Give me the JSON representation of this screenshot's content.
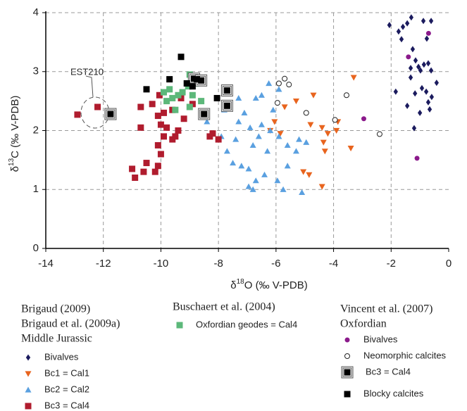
{
  "chart_data": {
    "type": "scatter",
    "x_label": {
      "symbol": "δ",
      "sup": "18",
      "rest": "O (‰ V-PDB)"
    },
    "y_label": {
      "symbol": "δ",
      "sup": "13",
      "rest": "C (‰ V-PDB)"
    },
    "annotation": "EST210",
    "xlim": [
      -14,
      0
    ],
    "ylim": [
      0,
      4
    ],
    "xticks": [
      -14,
      -12,
      -10,
      -8,
      -6,
      -4,
      -2,
      0
    ],
    "yticks": [
      0,
      1,
      2,
      3,
      4
    ],
    "grid": true,
    "legend_headers": [
      [
        "Brigaud (2009)",
        "Brigaud et al. (2009a)",
        "Middle Jurassic"
      ],
      [
        "Buschaert et al. (2004)"
      ],
      [
        "Vincent et al. (2007)",
        "Oxfordian"
      ]
    ],
    "series": [
      {
        "name": "Bivalves",
        "color": "#1b1b5e",
        "marker": "diamond",
        "x": [
          -2.06,
          -1.59,
          -1.44,
          -1.3,
          -1.74,
          -1.64,
          -1.25,
          -0.88,
          -0.61,
          -0.76,
          -1.15,
          -1.05,
          -0.98,
          -0.86,
          -0.71,
          -0.61,
          -1.32,
          -0.93,
          -0.78,
          -0.42,
          -1.17,
          -0.59,
          -1.84,
          -1.44,
          -1.0,
          -0.71,
          -0.66,
          -1.2,
          -1.32
        ],
        "y": [
          3.79,
          3.76,
          3.82,
          3.92,
          3.68,
          3.55,
          3.38,
          3.86,
          3.86,
          3.56,
          3.19,
          3.08,
          3.02,
          3.12,
          3.14,
          3.02,
          2.9,
          2.72,
          2.66,
          2.81,
          2.63,
          2.57,
          2.66,
          2.42,
          2.3,
          2.48,
          2.36,
          2.04,
          3.06
        ]
      },
      {
        "name": "Bc1 = Cal1",
        "color": "#e8641e",
        "marker": "tri-down",
        "x": [
          -3.3,
          -4.7,
          -5.3,
          -5.7,
          -4.8,
          -4.4,
          -4.2,
          -4.35,
          -4.3,
          -3.4,
          -3.85,
          -5.85,
          -6.2,
          -6.05,
          -5.05,
          -4.85,
          -4.4,
          -3.9
        ],
        "y": [
          2.9,
          2.6,
          2.5,
          2.4,
          2.1,
          2.05,
          1.95,
          1.8,
          1.65,
          1.7,
          2.15,
          1.95,
          2.0,
          2.15,
          1.3,
          1.25,
          1.05,
          2.0
        ]
      },
      {
        "name": "Bc2 = Cal2",
        "color": "#5aa0e0",
        "marker": "tri-up",
        "x": [
          -6.25,
          -5.9,
          -6.7,
          -7.1,
          -7.3,
          -6.9,
          -6.5,
          -6.2,
          -5.9,
          -5.6,
          -5.2,
          -4.95,
          -6.6,
          -6.8,
          -7.8,
          -7.9,
          -7.7,
          -7.5,
          -7.2,
          -6.95,
          -6.7,
          -6.95,
          -6.8,
          -6.4,
          -5.95,
          -5.75,
          -5.1,
          -5.3,
          -7.4,
          -8.4,
          -6.1,
          -6.5,
          -7.3,
          -6.3,
          -5.6
        ],
        "y": [
          2.8,
          2.7,
          2.55,
          2.3,
          2.15,
          2.05,
          2.1,
          2.0,
          1.9,
          1.75,
          1.85,
          1.8,
          1.9,
          1.75,
          2.35,
          1.9,
          1.65,
          1.45,
          1.4,
          1.35,
          1.15,
          1.05,
          1.0,
          1.25,
          1.15,
          1.0,
          0.95,
          1.65,
          1.85,
          2.15,
          2.35,
          2.6,
          2.55,
          1.65,
          1.4
        ]
      },
      {
        "name": "Bc3 = Cal4",
        "color": "#b01c2e",
        "marker": "square",
        "x": [
          -12.2,
          -12.9,
          -10.7,
          -10.3,
          -10.1,
          -9.9,
          -9.6,
          -9.2,
          -8.9,
          -10.7,
          -10.0,
          -9.8,
          -9.4,
          -9.9,
          -9.6,
          -10.1,
          -10.0,
          -10.1,
          -10.5,
          -10.6,
          -11.0,
          -10.9,
          -10.2,
          -9.5,
          -8.2,
          -8.0,
          -8.3,
          -10.05,
          -9.3
        ],
        "y": [
          2.4,
          2.27,
          2.4,
          2.45,
          2.25,
          2.3,
          2.35,
          2.2,
          2.45,
          2.05,
          2.1,
          2.05,
          2.0,
          1.9,
          1.85,
          1.75,
          1.6,
          1.4,
          1.45,
          1.3,
          1.35,
          1.2,
          1.3,
          1.9,
          1.95,
          1.85,
          1.9,
          2.6,
          2.55
        ]
      },
      {
        "name": "Oxfordian geodes = Cal4",
        "color": "#5cb87a",
        "marker": "square",
        "x": [
          -9.0,
          -8.95,
          -9.05,
          -9.7,
          -9.9,
          -9.6,
          -9.4,
          -9.25,
          -8.9,
          -8.6,
          -9.8,
          -9.5,
          -8.5,
          -9.0,
          -8.8
        ],
        "y": [
          2.95,
          2.85,
          2.75,
          2.7,
          2.65,
          2.55,
          2.6,
          2.65,
          2.6,
          2.5,
          2.5,
          2.35,
          2.3,
          2.4,
          2.8
        ]
      },
      {
        "name": "Bivalves",
        "color": "#8b1a8b",
        "marker": "circle",
        "x": [
          -0.7,
          -1.4,
          -2.95,
          -1.1
        ],
        "y": [
          3.65,
          3.25,
          2.2,
          1.53
        ]
      },
      {
        "name": "Neomorphic calcites",
        "color": "#222222",
        "marker": "open-circle",
        "x": [
          -5.9,
          -5.7,
          -5.55,
          -5.95,
          -3.55,
          -4.95,
          -3.95,
          -2.4
        ],
        "y": [
          2.8,
          2.88,
          2.78,
          2.47,
          2.6,
          2.3,
          2.18,
          1.94
        ]
      },
      {
        "name": "Bc3 = Cal4",
        "color": "#000000",
        "marker": "boxed-square",
        "x": [
          -11.75,
          -8.5,
          -7.7,
          -7.7,
          -8.85,
          -8.6
        ],
        "y": [
          2.28,
          2.28,
          2.68,
          2.42,
          2.88,
          2.85
        ]
      },
      {
        "name": "Blocky calcites",
        "color": "#000000",
        "marker": "square",
        "x": [
          -9.3,
          -9.7,
          -10.5,
          -9.1,
          -8.9,
          -8.75,
          -8.05
        ],
        "y": [
          3.25,
          2.87,
          2.7,
          2.8,
          2.75,
          2.87,
          2.55
        ]
      }
    ]
  }
}
